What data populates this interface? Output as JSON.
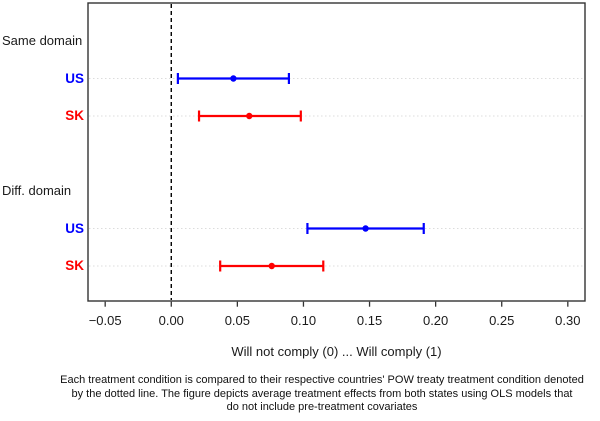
{
  "figure": {
    "background": "#ffffff",
    "box_color": "#333333",
    "tick_color": "#333333",
    "gridline_color": "#dcdcdc"
  },
  "chart_data": {
    "type": "dot-whisker",
    "title": "",
    "xlabel": "Will not comply (0) ... Will comply (1)",
    "xlim": [
      -0.063,
      0.313
    ],
    "xticks": [
      -0.05,
      0,
      0.05,
      0.1,
      0.15,
      0.2,
      0.25,
      0.3
    ],
    "xtick_labels": [
      "−0.05",
      "0.00",
      "0.05",
      "0.10",
      "0.15",
      "0.20",
      "0.25",
      "0.30"
    ],
    "reference_line": {
      "x": 0,
      "style": "dashed",
      "color": "#000000"
    },
    "grid": {
      "style": "dotted",
      "color": "#dcdcdc",
      "rows_only": true
    },
    "groups": [
      {
        "label": "Same domain",
        "slot": 0
      },
      {
        "label": "Diff. domain",
        "slot": 4
      }
    ],
    "series": [
      {
        "label": "US",
        "group": "Same domain",
        "color": "#0000ff",
        "slot": 1,
        "estimate": 0.047,
        "ci_low": 0.005,
        "ci_high": 0.089
      },
      {
        "label": "SK",
        "group": "Same domain",
        "color": "#ff0000",
        "slot": 2,
        "estimate": 0.059,
        "ci_low": 0.021,
        "ci_high": 0.098
      },
      {
        "label": "US",
        "group": "Diff. domain",
        "color": "#0000ff",
        "slot": 5,
        "estimate": 0.147,
        "ci_low": 0.103,
        "ci_high": 0.191
      },
      {
        "label": "SK",
        "group": "Diff. domain",
        "color": "#ff0000",
        "slot": 6,
        "estimate": 0.076,
        "ci_low": 0.037,
        "ci_high": 0.115
      }
    ],
    "caption_lines": [
      "Each treatment condition is compared to their respective countries' POW treaty treatment condition denoted",
      "by the dotted line. The figure depicts average treatment effects from both states using OLS models that",
      "do not include pre-treatment covariates"
    ]
  }
}
